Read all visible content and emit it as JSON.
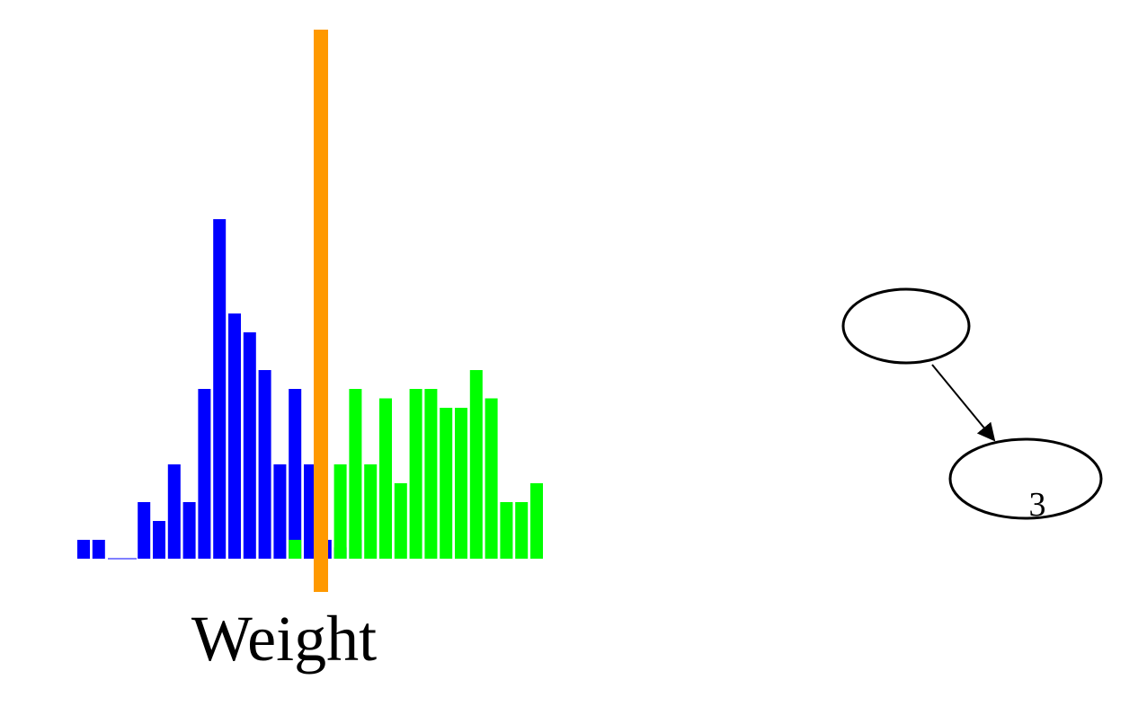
{
  "chart_data": {
    "type": "bar",
    "xlabel": "Weight",
    "ylabel": "",
    "title": "",
    "series": [
      {
        "color": "#0000ff",
        "values": [
          1,
          1,
          0,
          0,
          3,
          2,
          5,
          3,
          9,
          18,
          13,
          12,
          10,
          5,
          9,
          5,
          1,
          0.6,
          1,
          0,
          0,
          0,
          0,
          0,
          0,
          0
        ]
      },
      {
        "color": "#00ff00",
        "values": [
          0,
          0,
          0,
          0,
          0,
          0,
          0,
          0,
          0,
          0,
          0,
          0,
          0,
          0,
          1,
          0,
          0,
          5,
          9,
          5,
          8.5,
          4,
          9,
          9,
          8,
          8,
          10,
          8.5,
          3,
          3,
          4
        ]
      }
    ],
    "threshold": {
      "color": "#ff9900"
    },
    "grid": false,
    "legend": "none"
  },
  "diagram": {
    "nodes": [
      {
        "id": "root",
        "label": ""
      },
      {
        "id": "leaf",
        "label": "3"
      }
    ],
    "edges": [
      {
        "from": "root",
        "to": "leaf"
      }
    ]
  }
}
